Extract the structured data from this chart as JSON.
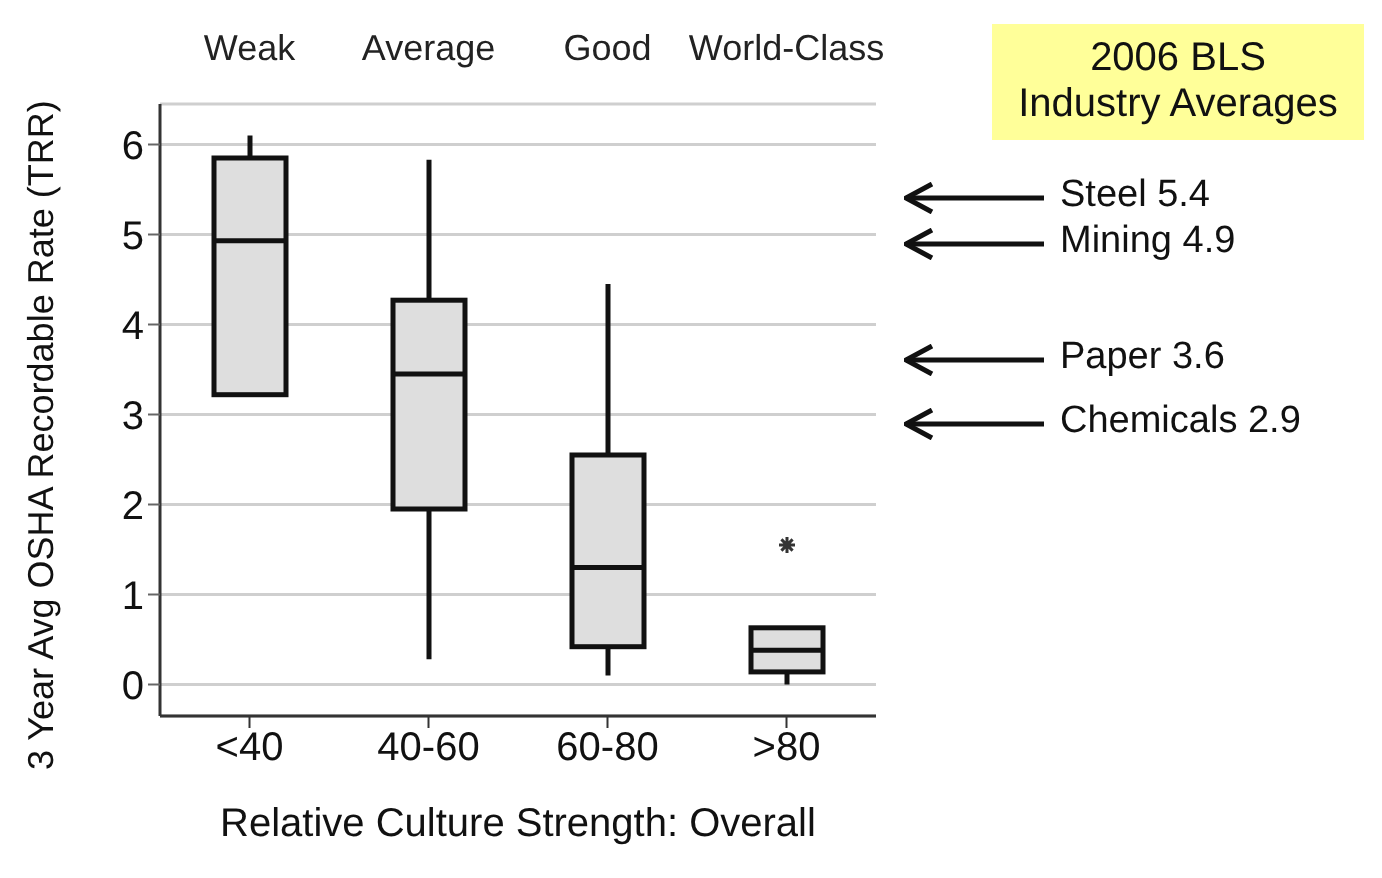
{
  "chart_data": {
    "type": "box",
    "xlabel": "Relative Culture Strength: Overall",
    "ylabel": "3 Year Avg OSHA Recordable Rate (TRR)",
    "categories": [
      "<40",
      "40-60",
      "60-80",
      ">80"
    ],
    "series": [
      {
        "color": "#dedede",
        "boxes": [
          {
            "low": 3.22,
            "q1": 3.22,
            "median": 4.93,
            "q3": 5.85,
            "high": 6.1
          },
          {
            "low": 0.28,
            "q1": 1.95,
            "median": 3.45,
            "q3": 4.27,
            "high": 5.83
          },
          {
            "low": 0.1,
            "q1": 0.42,
            "median": 1.3,
            "q3": 2.55,
            "high": 4.45
          },
          {
            "low": 0.0,
            "q1": 0.14,
            "median": 0.38,
            "q3": 0.63,
            "high": 0.63,
            "outliers": [
              1.55
            ]
          }
        ]
      }
    ],
    "ylim": [
      -0.35,
      6.45
    ],
    "yticks": [
      0,
      1,
      2,
      3,
      4,
      5,
      6
    ],
    "grid": "y",
    "annotations": [
      "Weak",
      "Average",
      "Good",
      "World-Class",
      "2006 BLS\nIndustry Averages"
    ],
    "ref_lines": [
      {
        "axis": "y",
        "value": 5.4,
        "label": "Steel 5.4"
      },
      {
        "axis": "y",
        "value": 4.9,
        "label": "Mining 4.9"
      },
      {
        "axis": "y",
        "value": 3.6,
        "label": "Paper 3.6"
      },
      {
        "axis": "y",
        "value": 2.9,
        "label": "Chemicals 2.9"
      }
    ]
  }
}
